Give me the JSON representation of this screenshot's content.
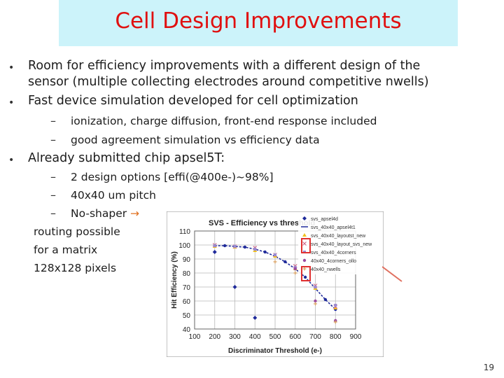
{
  "slide": {
    "title": "Cell Design Improvements",
    "page_number": "19"
  },
  "bullets": [
    {
      "line1": "Room for efficiency improvements with a different design of the",
      "line2": "sensor (multiple collecting electrodes around competitive nwells)"
    },
    {
      "line1": "Fast device simulation developed for cell optimization",
      "sub": [
        "ionization, charge diffusion, front-end response included",
        "good agreement simulation vs  efficiency data"
      ]
    },
    {
      "line1": "Already submitted chip apsel5T:",
      "sub": [
        "2 design options [effi(@400e-)~98%]",
        "40x40 um pitch",
        "No-shaper"
      ],
      "continuation": [
        "routing possible",
        "for a matrix",
        "128x128 pixels"
      ]
    }
  ],
  "chart_data": {
    "type": "scatter",
    "title": "SVS - Efficiency vs threshold",
    "xlabel": "Discriminator Threshold (e-)",
    "ylabel": "Hit Efficiency (%)",
    "xlim": [
      100,
      900
    ],
    "ylim": [
      40,
      110
    ],
    "x_ticks": [
      "100",
      "200",
      "300",
      "400",
      "500",
      "600",
      "700",
      "800",
      "900"
    ],
    "y_ticks": [
      "40",
      "50",
      "60",
      "70",
      "80",
      "90",
      "100",
      "110"
    ],
    "grid": true,
    "legend_position": "top-right",
    "series": [
      {
        "name": "svs_apsel4d",
        "color": "#1f2a9a",
        "marker": "diamond",
        "x": [
          200,
          300,
          400
        ],
        "y": [
          95,
          70,
          48
        ]
      },
      {
        "name": "svs_40x40_apsel4t1",
        "color": "#1f2a9a",
        "marker": "line",
        "x": [
          200,
          250,
          300,
          350,
          400,
          450,
          500,
          550,
          600,
          650,
          700,
          750,
          800
        ],
        "y": [
          99.5,
          99.5,
          99,
          98.5,
          97,
          95,
          92,
          88,
          83,
          77,
          69,
          61,
          54
        ]
      },
      {
        "name": "svs_40x40_layoutst_new",
        "color": "#f0c020",
        "marker": "triangle",
        "x": [
          200,
          300,
          400,
          500,
          600,
          700,
          800
        ],
        "y": [
          99,
          98.5,
          96,
          92,
          83,
          69,
          55
        ]
      },
      {
        "name": "svs_40x40_layout_svs_new",
        "color": "#d06a8a",
        "marker": "x",
        "x": [
          200,
          300,
          400,
          500,
          600,
          700,
          800
        ],
        "y": [
          100,
          99,
          98,
          93,
          85,
          71,
          56
        ]
      },
      {
        "name": "svs_40x40_4corners",
        "color": "#9a8ad0",
        "marker": "square",
        "x": [
          200,
          300,
          400,
          500,
          600,
          700,
          800
        ],
        "y": [
          99.5,
          99,
          97,
          93,
          84,
          70,
          57
        ]
      },
      {
        "name": "40x40_4corners_ollo",
        "color": "#9a4aa0",
        "marker": "circle",
        "x": [
          600,
          700,
          800
        ],
        "y": [
          83,
          60,
          46
        ]
      },
      {
        "name": "40x40_nwells",
        "color": "#d9a060",
        "marker": "plus",
        "x": [
          500,
          600,
          700,
          800
        ],
        "y": [
          88,
          80,
          58,
          45
        ]
      }
    ]
  }
}
